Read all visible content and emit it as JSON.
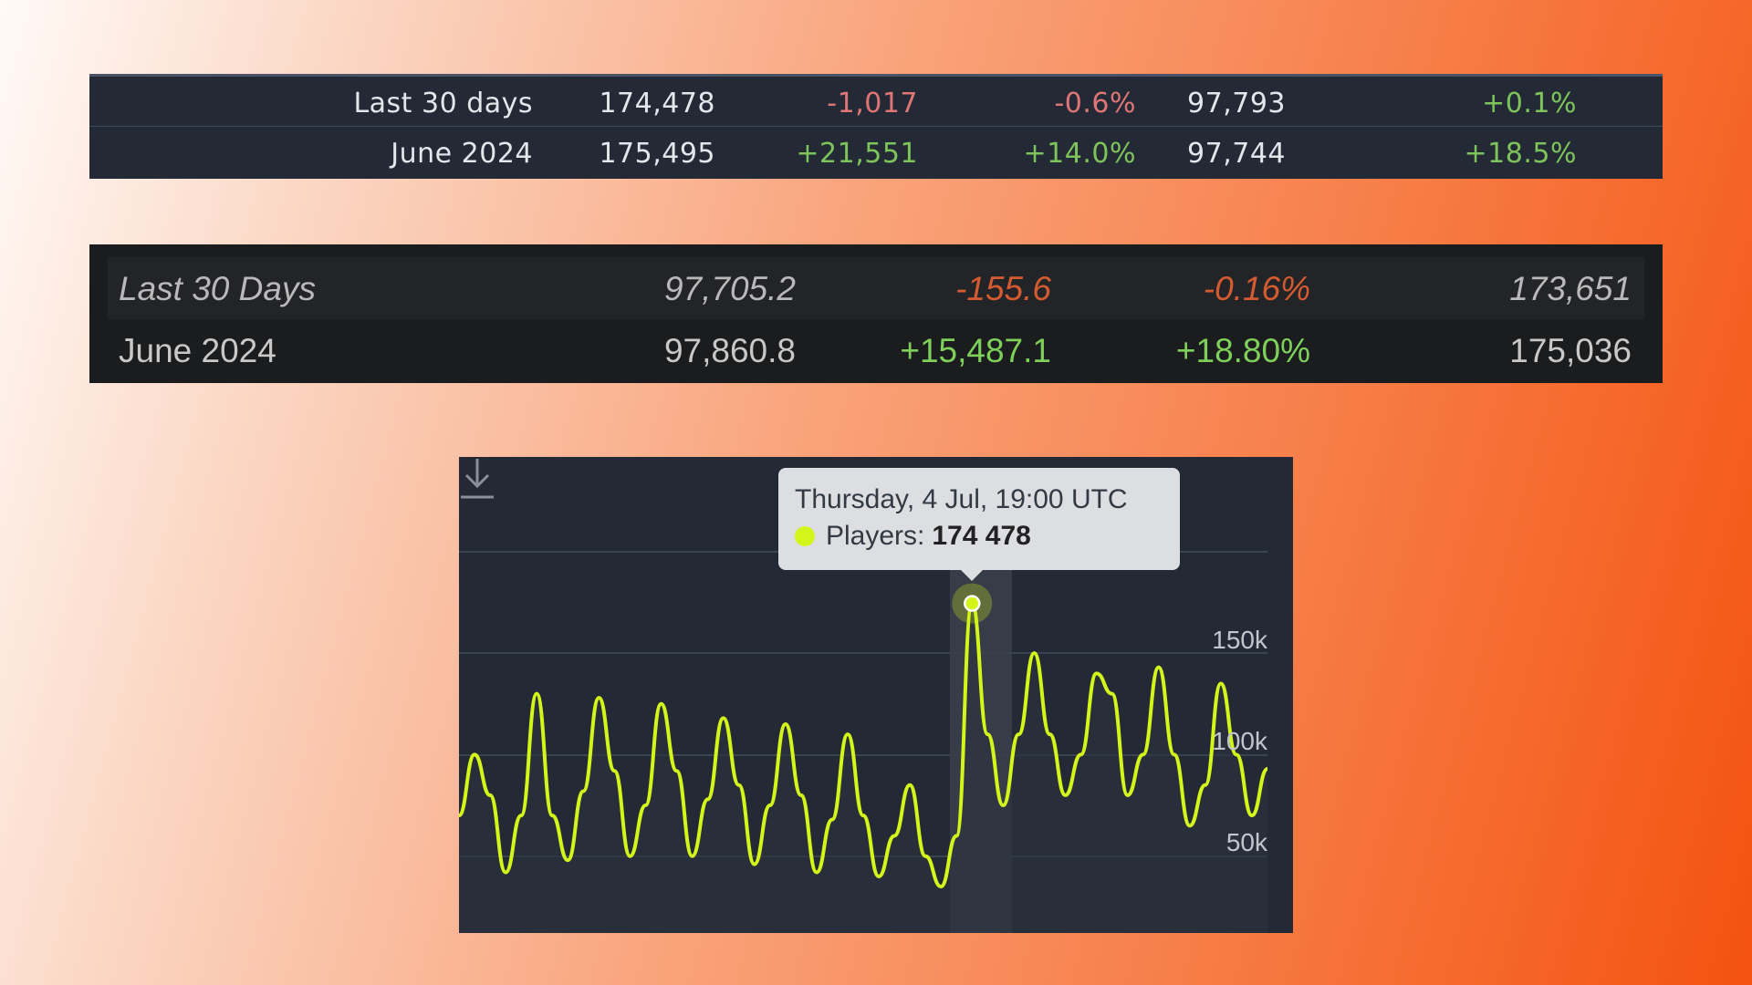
{
  "steam_table": {
    "rows": [
      {
        "month": "Last 30 days",
        "peak": "174,478",
        "gain": "-1,017",
        "pct": "-0.6%",
        "avg": "97,793",
        "avg_pct": "+0.1%"
      },
      {
        "month": "June 2024",
        "peak": "175,495",
        "gain": "+21,551",
        "pct": "+14.0%",
        "avg": "97,744",
        "avg_pct": "+18.5%"
      }
    ]
  },
  "charts_table": {
    "rows": [
      {
        "month": "Last 30 Days",
        "avg": "97,705.2",
        "gain": "-155.6",
        "pct": "-0.16%",
        "peak": "173,651"
      },
      {
        "month": "June 2024",
        "avg": "97,860.8",
        "gain": "+15,487.1",
        "pct": "+18.80%",
        "peak": "175,036"
      }
    ]
  },
  "tooltip": {
    "date": "Thursday, 4 Jul, 19:00 UTC",
    "label": "Players:",
    "value": "174 478"
  },
  "colors": {
    "line": "#d4f51a",
    "negative": "#e07575",
    "positive": "#7ec45a"
  },
  "chart_data": {
    "type": "line",
    "y_ticks": [
      "150k",
      "100k",
      "50k"
    ],
    "ylim": [
      0,
      200000
    ],
    "series": [
      {
        "values": [
          70000,
          100000,
          80000,
          42000,
          70000,
          130000,
          70000,
          48000,
          82000,
          128000,
          92000,
          50000,
          75000,
          125000,
          92000,
          50000,
          78000,
          118000,
          85000,
          46000,
          75000,
          115000,
          80000,
          42000,
          68000,
          110000,
          70000,
          40000,
          60000,
          85000,
          50000,
          35000,
          60000,
          174478,
          110000,
          75000,
          110000,
          150000,
          110000,
          80000,
          100000,
          140000,
          130000,
          80000,
          100000,
          143000,
          100000,
          65000,
          85000,
          135000,
          100000,
          70000,
          93000
        ]
      }
    ]
  }
}
